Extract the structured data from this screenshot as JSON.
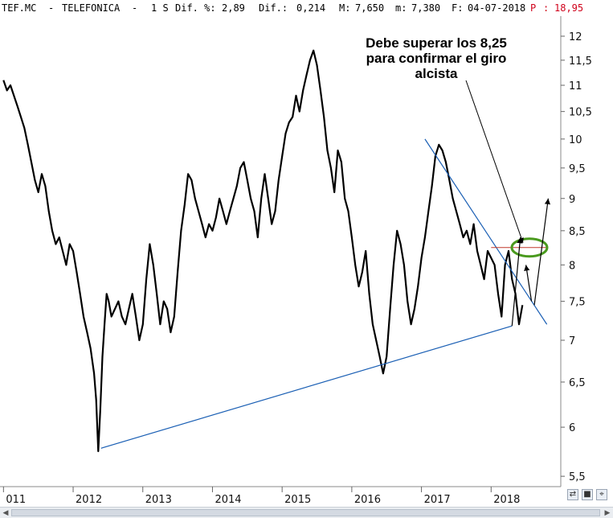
{
  "header": {
    "symbol": "TEF.MC",
    "name": "TELEFONICA",
    "period": "1 S",
    "pct_label": "Dif. %:",
    "pct_value": "2,89",
    "dif_label": "Dif.:",
    "dif_value": "0,214",
    "max_label": "M:",
    "max_value": "7,650",
    "min_label": "m:",
    "min_value": "7,380",
    "date_label": "F:",
    "date_value": "04-07-2018",
    "per_label": "P",
    "per_value": "18,95",
    "per_color": "#d0021b"
  },
  "annotation": {
    "lines": [
      "Debe superar los 8,25",
      "para confirmar el giro",
      "alcista"
    ]
  },
  "chart_data": {
    "type": "line",
    "x_unit": "year",
    "y_ticks": [
      "12",
      "11,5",
      "11",
      "10,5",
      "10",
      "9,5",
      "9",
      "8,5",
      "8",
      "7,5",
      "7",
      "6,5",
      "6",
      "5,5"
    ],
    "y_tick_values": [
      12,
      11.5,
      11,
      10.5,
      10,
      9.5,
      9,
      8.5,
      8,
      7.5,
      7,
      6.5,
      6,
      5.5
    ],
    "x_ticks": [
      "011",
      "2012",
      "2013",
      "2014",
      "2015",
      "2016",
      "2017",
      "2018"
    ],
    "x_tick_values": [
      2011.0,
      2012.0,
      2013.0,
      2014.0,
      2015.0,
      2016.0,
      2017.0,
      2018.0
    ],
    "xlim": [
      2010.95,
      2019.0
    ],
    "ylim_log": [
      5.4,
      12.4
    ],
    "y_scale": "log",
    "series": [
      {
        "x": [
          2011.0,
          2011.05,
          2011.1,
          2011.15,
          2011.2,
          2011.25,
          2011.3,
          2011.35,
          2011.4,
          2011.45,
          2011.5,
          2011.55,
          2011.6,
          2011.65,
          2011.7,
          2011.75,
          2011.8,
          2011.85,
          2011.9,
          2011.95,
          2012.0,
          2012.05,
          2012.1,
          2012.15,
          2012.2,
          2012.25,
          2012.3,
          2012.33,
          2012.36,
          2012.39,
          2012.42,
          2012.45,
          2012.48,
          2012.51,
          2012.55,
          2012.6,
          2012.65,
          2012.7,
          2012.75,
          2012.8,
          2012.85,
          2012.9,
          2012.95,
          2013.0,
          2013.05,
          2013.1,
          2013.15,
          2013.2,
          2013.25,
          2013.3,
          2013.35,
          2013.4,
          2013.45,
          2013.5,
          2013.55,
          2013.6,
          2013.65,
          2013.7,
          2013.75,
          2013.8,
          2013.85,
          2013.9,
          2013.95,
          2014.0,
          2014.05,
          2014.1,
          2014.15,
          2014.2,
          2014.25,
          2014.3,
          2014.35,
          2014.4,
          2014.45,
          2014.5,
          2014.55,
          2014.6,
          2014.65,
          2014.7,
          2014.75,
          2014.8,
          2014.85,
          2014.9,
          2014.95,
          2015.0,
          2015.05,
          2015.1,
          2015.15,
          2015.2,
          2015.25,
          2015.3,
          2015.35,
          2015.4,
          2015.45,
          2015.5,
          2015.55,
          2015.6,
          2015.65,
          2015.7,
          2015.75,
          2015.8,
          2015.85,
          2015.9,
          2015.95,
          2016.0,
          2016.05,
          2016.1,
          2016.15,
          2016.2,
          2016.25,
          2016.3,
          2016.35,
          2016.4,
          2016.45,
          2016.5,
          2016.55,
          2016.6,
          2016.65,
          2016.7,
          2016.75,
          2016.8,
          2016.85,
          2016.9,
          2016.95,
          2017.0,
          2017.05,
          2017.1,
          2017.15,
          2017.2,
          2017.25,
          2017.3,
          2017.35,
          2017.4,
          2017.45,
          2017.5,
          2017.55,
          2017.6,
          2017.65,
          2017.7,
          2017.75,
          2017.8,
          2017.85,
          2017.9,
          2017.95,
          2018.0,
          2018.05,
          2018.1,
          2018.15,
          2018.2,
          2018.25,
          2018.3,
          2018.35,
          2018.4,
          2018.45
        ],
        "y": [
          11.1,
          10.9,
          11.0,
          10.8,
          10.6,
          10.4,
          10.2,
          9.9,
          9.6,
          9.3,
          9.1,
          9.4,
          9.2,
          8.8,
          8.5,
          8.3,
          8.4,
          8.2,
          8.0,
          8.3,
          8.2,
          7.9,
          7.6,
          7.3,
          7.1,
          6.9,
          6.6,
          6.3,
          5.75,
          6.2,
          6.8,
          7.2,
          7.6,
          7.5,
          7.3,
          7.4,
          7.5,
          7.3,
          7.2,
          7.4,
          7.6,
          7.3,
          7.0,
          7.2,
          7.8,
          8.3,
          8.0,
          7.6,
          7.2,
          7.5,
          7.4,
          7.1,
          7.3,
          7.9,
          8.5,
          8.9,
          9.4,
          9.3,
          9.0,
          8.8,
          8.6,
          8.4,
          8.6,
          8.5,
          8.7,
          9.0,
          8.8,
          8.6,
          8.8,
          9.0,
          9.2,
          9.5,
          9.6,
          9.3,
          9.0,
          8.8,
          8.4,
          9.0,
          9.4,
          9.0,
          8.6,
          8.8,
          9.3,
          9.7,
          10.1,
          10.3,
          10.4,
          10.8,
          10.5,
          10.9,
          11.2,
          11.5,
          11.7,
          11.4,
          10.9,
          10.4,
          9.8,
          9.5,
          9.1,
          9.8,
          9.6,
          9.0,
          8.8,
          8.4,
          8.0,
          7.7,
          7.9,
          8.2,
          7.6,
          7.2,
          7.0,
          6.8,
          6.6,
          6.8,
          7.4,
          8.0,
          8.5,
          8.3,
          8.0,
          7.5,
          7.2,
          7.4,
          7.7,
          8.1,
          8.4,
          8.8,
          9.2,
          9.7,
          9.9,
          9.8,
          9.6,
          9.3,
          9.0,
          8.8,
          8.6,
          8.4,
          8.5,
          8.3,
          8.6,
          8.2,
          8.0,
          7.8,
          8.2,
          8.1,
          8.0,
          7.6,
          7.3,
          8.0,
          8.2,
          7.8,
          7.6,
          7.2,
          7.45
        ]
      }
    ],
    "trendlines": [
      {
        "name": "support",
        "from": [
          2012.4,
          5.78
        ],
        "to": [
          2018.3,
          7.18
        ],
        "color": "#1a5fb4"
      },
      {
        "name": "resistance",
        "from": [
          2017.05,
          10.0
        ],
        "to": [
          2018.8,
          7.2
        ],
        "color": "#1a5fb4"
      }
    ],
    "level_line": {
      "value": 8.25,
      "from": 2018.0,
      "to": 2018.8,
      "color": "#c0392b"
    },
    "highlight_ellipse": {
      "x": 2018.55,
      "y": 8.25,
      "color": "#4a9a1e"
    },
    "arrows": [
      {
        "from": [
          2018.3,
          7.18
        ],
        "to": [
          2018.42,
          8.4
        ]
      },
      {
        "from": [
          2018.62,
          7.45
        ],
        "to": [
          2018.82,
          9.0
        ]
      },
      {
        "from": [
          2018.58,
          7.5
        ],
        "to": [
          2018.5,
          8.0
        ]
      }
    ],
    "grid": false,
    "legend": "none",
    "colors": {
      "price": "#000000",
      "trend": "#1a5fb4",
      "level": "#c0392b",
      "ellipse": "#4a9a1e"
    }
  }
}
